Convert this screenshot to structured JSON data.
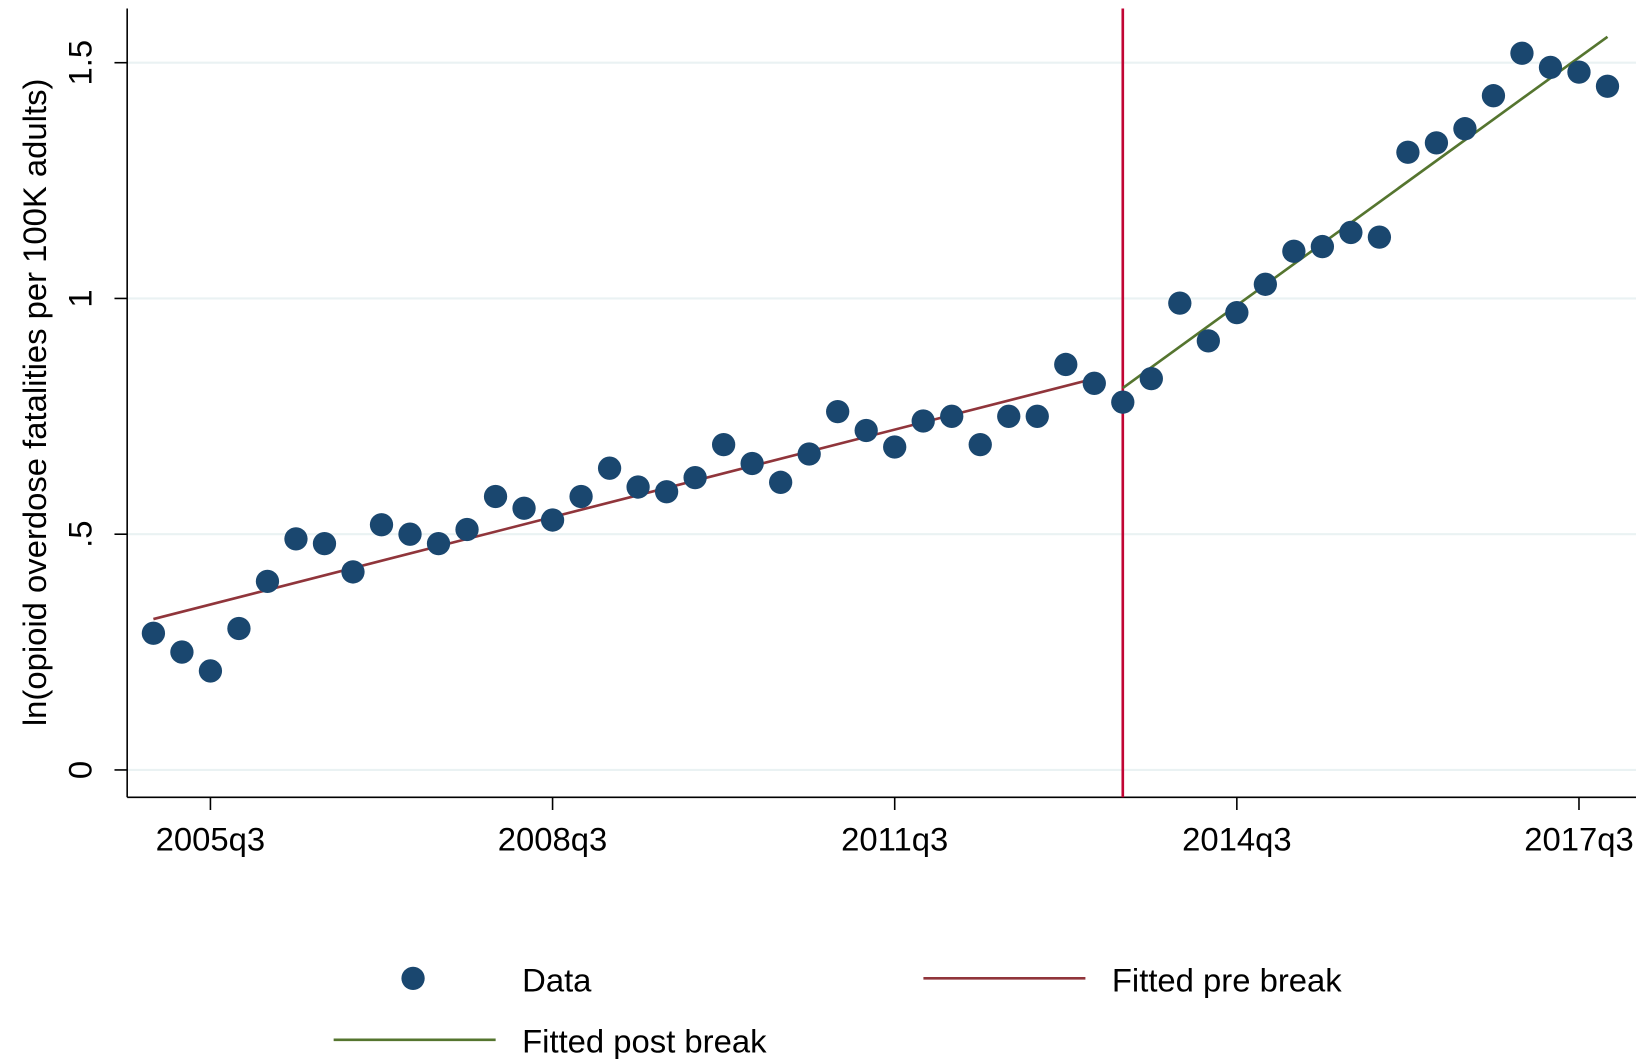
{
  "chart_data": {
    "type": "scatter",
    "y_label": "ln(opioid overdose fatalities per 100K adults)",
    "xlim": [
      2004.77,
      2018.0
    ],
    "ylim": [
      -0.058,
      1.615
    ],
    "xticks": [
      {
        "value": 2005.5,
        "label": "2005q3"
      },
      {
        "value": 2008.5,
        "label": "2008q3"
      },
      {
        "value": 2011.5,
        "label": "2011q3"
      },
      {
        "value": 2014.5,
        "label": "2014q3"
      },
      {
        "value": 2017.5,
        "label": "2017q3"
      }
    ],
    "yticks": [
      0,
      {
        "value": 0.5,
        "label": ".5"
      },
      1,
      {
        "value": 1.5,
        "label": "1.5"
      }
    ],
    "grid": true,
    "vline": {
      "x": 2013.5,
      "color": "#c10534"
    },
    "series": [
      {
        "name": "Data",
        "mode": "markers",
        "color": "#1a476f",
        "x": [
          2005,
          2005.25,
          2005.5,
          2005.75,
          2006,
          2006.25,
          2006.5,
          2006.75,
          2007,
          2007.25,
          2007.5,
          2007.75,
          2008,
          2008.25,
          2008.5,
          2008.75,
          2009,
          2009.25,
          2009.5,
          2009.75,
          2010,
          2010.25,
          2010.5,
          2010.75,
          2011,
          2011.25,
          2011.5,
          2011.75,
          2012,
          2012.25,
          2012.5,
          2012.75,
          2013,
          2013.25,
          2013.5,
          2013.75,
          2014,
          2014.25,
          2014.5,
          2014.75,
          2015,
          2015.25,
          2015.5,
          2015.75,
          2016,
          2016.25,
          2016.5,
          2016.75,
          2017,
          2017.25,
          2017.5,
          2017.75
        ],
        "values": [
          0.29,
          0.25,
          0.21,
          0.3,
          0.4,
          0.49,
          0.48,
          0.42,
          0.52,
          0.5,
          0.48,
          0.51,
          0.58,
          0.555,
          0.53,
          0.58,
          0.64,
          0.6,
          0.59,
          0.62,
          0.69,
          0.65,
          0.61,
          0.67,
          0.76,
          0.72,
          0.685,
          0.74,
          0.75,
          0.69,
          0.75,
          0.75,
          0.86,
          0.82,
          0.78,
          0.83,
          0.99,
          0.91,
          0.97,
          1.03,
          1.1,
          1.11,
          1.14,
          1.13,
          1.31,
          1.33,
          1.36,
          1.43,
          1.52,
          1.49,
          1.48,
          1.45
        ]
      },
      {
        "name": "Fitted pre break",
        "mode": "line",
        "color": "#90353b",
        "x": [
          2005,
          2013.25
        ],
        "values": [
          0.32,
          0.83
        ]
      },
      {
        "name": "Fitted post break",
        "mode": "line",
        "color": "#55752f",
        "x": [
          2013.5,
          2017.75
        ],
        "values": [
          0.81,
          1.555
        ]
      }
    ]
  }
}
